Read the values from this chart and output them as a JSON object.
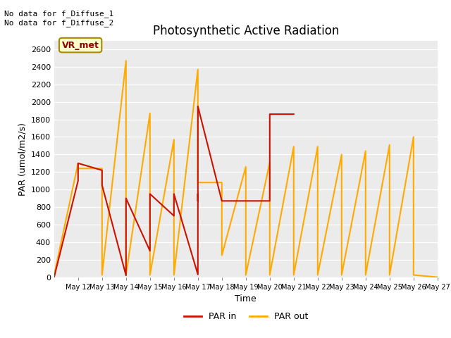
{
  "title": "Photosynthetic Active Radiation",
  "xlabel": "Time",
  "ylabel": "PAR (umol/m2/s)",
  "ylim": [
    0,
    2700
  ],
  "yticks": [
    0,
    200,
    400,
    600,
    800,
    1000,
    1200,
    1400,
    1600,
    1800,
    2000,
    2200,
    2400,
    2600
  ],
  "annotation_text": "No data for f_Diffuse_1\nNo data for f_Diffuse_2",
  "legend_box_text": "VR_met",
  "bg_color": "#ebebeb",
  "line_par_in_color": "#cc1100",
  "line_par_out_color": "#ffaa00",
  "par_in_x": [
    11,
    12,
    12,
    13,
    13,
    14,
    14,
    15,
    15,
    16,
    16,
    17,
    17,
    17,
    17,
    18,
    18,
    19,
    19,
    20,
    20,
    21
  ],
  "par_in_y": [
    0,
    1100,
    1300,
    1220,
    1050,
    20,
    900,
    300,
    950,
    700,
    950,
    30,
    950,
    870,
    1950,
    870,
    870,
    870,
    870,
    870,
    1860,
    1860
  ],
  "par_out_x": [
    11,
    12,
    12,
    13,
    13,
    14,
    14,
    15,
    15,
    16,
    16,
    17,
    17,
    18,
    18,
    19,
    19,
    20,
    20,
    21,
    21,
    22,
    22,
    23,
    23,
    24,
    24,
    25,
    25,
    26,
    26,
    27
  ],
  "par_out_y": [
    25,
    1300,
    1240,
    1240,
    25,
    2470,
    25,
    1870,
    25,
    1570,
    25,
    2370,
    1080,
    1080,
    250,
    1260,
    25,
    1310,
    25,
    1490,
    25,
    1490,
    25,
    1400,
    25,
    1440,
    25,
    1510,
    25,
    1600,
    25,
    0
  ],
  "xlim": [
    11.0,
    27.0
  ],
  "xticks": [
    12,
    13,
    14,
    15,
    16,
    17,
    18,
    19,
    20,
    21,
    22,
    23,
    24,
    25,
    26,
    27
  ],
  "xtick_labels": [
    "May 12",
    "May 13",
    "May 14",
    "May 15",
    "May 16",
    "May 17",
    "May 18",
    "May 19",
    "May 20",
    "May 21",
    "May 22",
    "May 23",
    "May 24",
    "May 25",
    "May 26",
    "May 27"
  ]
}
